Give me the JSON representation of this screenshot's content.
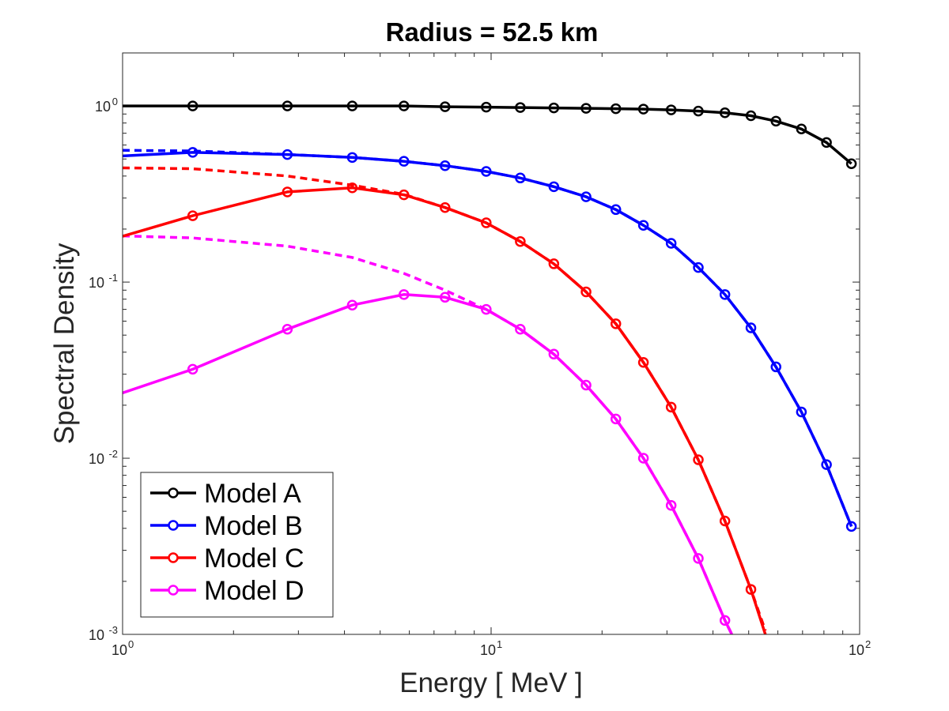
{
  "chart_data": {
    "type": "line",
    "title": "Radius = 52.5 km",
    "xlabel": "Energy [ MeV ]",
    "ylabel": "Spectral Density",
    "xscale": "log",
    "yscale": "log",
    "xlim": [
      1,
      100
    ],
    "ylim": [
      0.001,
      2
    ],
    "x_ticks": [
      {
        "base": "10",
        "exp": "0"
      },
      {
        "base": "10",
        "exp": "1"
      },
      {
        "base": "10",
        "exp": "2"
      }
    ],
    "y_ticks": [
      {
        "base": "10",
        "exp": "-3"
      },
      {
        "base": "10",
        "exp": "-2"
      },
      {
        "base": "10",
        "exp": "-1"
      },
      {
        "base": "10",
        "exp": "0"
      }
    ],
    "legend_position": "bottom-left",
    "grid": false,
    "series": [
      {
        "name": "Model A",
        "color": "#000000",
        "x": [
          1.0,
          1.55,
          2.8,
          4.2,
          5.8,
          7.5,
          9.7,
          12.0,
          14.8,
          18.1,
          21.8,
          25.9,
          30.8,
          36.5,
          43.1,
          50.7,
          59.3,
          69.5,
          81.3,
          95.0
        ],
        "y": [
          1.0,
          1.0,
          1.0,
          1.0,
          1.0,
          0.99,
          0.985,
          0.98,
          0.975,
          0.97,
          0.965,
          0.96,
          0.95,
          0.935,
          0.915,
          0.88,
          0.82,
          0.74,
          0.62,
          0.47
        ],
        "markers": true
      },
      {
        "name": "Model B",
        "color": "#0000ff",
        "x": [
          1.0,
          1.55,
          2.8,
          4.2,
          5.8,
          7.5,
          9.7,
          12.0,
          14.8,
          18.1,
          21.8,
          25.9,
          30.8,
          36.5,
          43.1,
          50.7,
          59.3,
          69.5,
          81.3,
          95.0
        ],
        "y": [
          0.52,
          0.545,
          0.53,
          0.51,
          0.485,
          0.458,
          0.425,
          0.39,
          0.348,
          0.305,
          0.258,
          0.21,
          0.166,
          0.121,
          0.085,
          0.055,
          0.033,
          0.0183,
          0.0092,
          0.0041
        ],
        "markers": true
      },
      {
        "name": "Model C",
        "color": "#ff0000",
        "x": [
          1.0,
          1.55,
          2.8,
          4.2,
          5.8,
          7.5,
          9.7,
          12.0,
          14.8,
          18.1,
          21.8,
          25.9,
          30.8,
          36.5,
          43.1,
          50.7,
          55.5
        ],
        "y": [
          0.182,
          0.238,
          0.325,
          0.343,
          0.313,
          0.265,
          0.217,
          0.17,
          0.127,
          0.088,
          0.058,
          0.035,
          0.0195,
          0.0098,
          0.0044,
          0.0018,
          0.001
        ],
        "markers": true
      },
      {
        "name": "Model D",
        "color": "#ff00ff",
        "x": [
          1.0,
          1.55,
          2.8,
          4.2,
          5.8,
          7.5,
          9.7,
          12.0,
          14.8,
          18.1,
          21.8,
          25.9,
          30.8,
          36.5,
          43.1,
          45.0
        ],
        "y": [
          0.0235,
          0.032,
          0.054,
          0.074,
          0.085,
          0.082,
          0.07,
          0.054,
          0.039,
          0.026,
          0.0167,
          0.01,
          0.0054,
          0.0027,
          0.0012,
          0.001
        ],
        "markers": true
      },
      {
        "color": "#0000ff",
        "dashed": true,
        "x": [
          1.0,
          1.55,
          2.8,
          4.2,
          5.8,
          7.5,
          9.7,
          12.0,
          14.8,
          18.1,
          21.8,
          25.9,
          30.8,
          36.5,
          43.1,
          50.7,
          59.3,
          69.5,
          81.3,
          95.0
        ],
        "y": [
          0.56,
          0.555,
          0.53,
          0.51,
          0.485,
          0.458,
          0.425,
          0.39,
          0.348,
          0.305,
          0.258,
          0.21,
          0.166,
          0.121,
          0.085,
          0.055,
          0.033,
          0.0183,
          0.0092,
          0.0041
        ],
        "markers": false
      },
      {
        "color": "#ff0000",
        "dashed": true,
        "x": [
          1.0,
          1.55,
          2.8,
          4.2,
          5.8,
          7.5,
          9.7,
          12.0,
          14.8,
          18.1,
          21.8,
          25.9,
          30.8,
          36.5,
          43.1,
          50.7,
          55.5
        ],
        "y": [
          0.445,
          0.44,
          0.4,
          0.355,
          0.315,
          0.265,
          0.217,
          0.17,
          0.127,
          0.088,
          0.058,
          0.035,
          0.0195,
          0.0098,
          0.0044,
          0.0018,
          0.00105
        ],
        "markers": false
      },
      {
        "color": "#ff00ff",
        "dashed": true,
        "x": [
          1.0,
          1.55,
          2.8,
          4.2,
          5.8,
          7.5,
          9.7,
          12.0,
          14.8,
          18.1,
          21.8,
          25.9,
          30.8,
          36.5,
          43.1,
          45.0
        ],
        "y": [
          0.183,
          0.178,
          0.16,
          0.138,
          0.112,
          0.09,
          0.07,
          0.054,
          0.039,
          0.026,
          0.0167,
          0.01,
          0.0054,
          0.0027,
          0.0012,
          0.001
        ],
        "markers": false
      }
    ]
  }
}
